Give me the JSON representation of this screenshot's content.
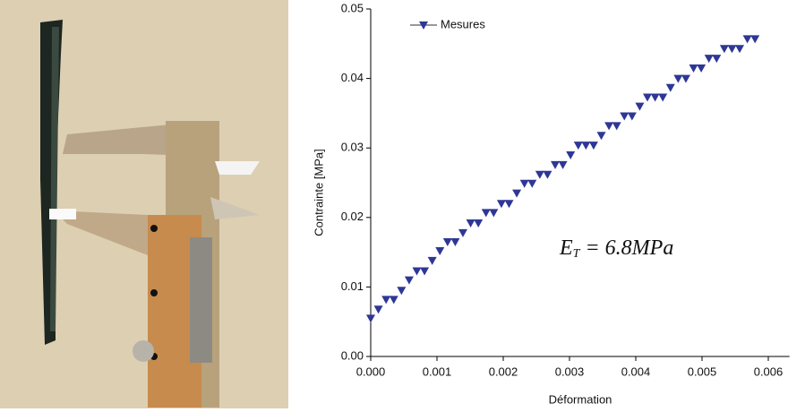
{
  "chart_data": {
    "type": "scatter",
    "xlabel": "Déformation",
    "ylabel": "Contrainte [MPa]",
    "annotation": {
      "symbol": "E",
      "subscript": "T",
      "equals": "= 6.8",
      "unit": "MPa"
    },
    "legend": "top-left",
    "xlim": [
      0,
      0.00632
    ],
    "ylim": [
      0,
      0.05
    ],
    "xticks": [
      {
        "value": 0,
        "label": "0.000"
      },
      {
        "value": 0.001,
        "label": "0.001"
      },
      {
        "value": 0.002,
        "label": "0.002"
      },
      {
        "value": 0.003,
        "label": "0.003"
      },
      {
        "value": 0.004,
        "label": "0.004"
      },
      {
        "value": 0.005,
        "label": "0.005"
      },
      {
        "value": 0.006,
        "label": "0.006"
      }
    ],
    "yticks": [
      {
        "value": 0,
        "label": "0.00"
      },
      {
        "value": 0.01,
        "label": "0.01"
      },
      {
        "value": 0.02,
        "label": "0.02"
      },
      {
        "value": 0.03,
        "label": "0.03"
      },
      {
        "value": 0.04,
        "label": "0.04"
      },
      {
        "value": 0.05,
        "label": "0.05"
      }
    ],
    "series": [
      {
        "name": "Mesures",
        "color": "#2e3796",
        "x": [
          0,
          0.000116,
          0.000232,
          0.000348,
          0.000464,
          0.00058,
          0.000696,
          0.000812,
          0.000928,
          0.001044,
          0.00116,
          0.001276,
          0.001392,
          0.001508,
          0.001624,
          0.00174,
          0.001856,
          0.001972,
          0.002088,
          0.002204,
          0.00232,
          0.002436,
          0.002552,
          0.002668,
          0.002784,
          0.0029,
          0.003016,
          0.003132,
          0.003248,
          0.003364,
          0.00348,
          0.003596,
          0.003712,
          0.003828,
          0.003944,
          0.00406,
          0.004176,
          0.004292,
          0.004408,
          0.004524,
          0.00464,
          0.004756,
          0.004872,
          0.004988,
          0.005104,
          0.00522,
          0.005336,
          0.005452,
          0.005568,
          0.005684,
          0.0058
        ],
        "values": [
          0.0055,
          0.0068,
          0.0082,
          0.0082,
          0.0095,
          0.011,
          0.0123,
          0.0123,
          0.0138,
          0.0152,
          0.0165,
          0.0165,
          0.0178,
          0.0192,
          0.0192,
          0.0207,
          0.0207,
          0.022,
          0.022,
          0.0235,
          0.0249,
          0.0249,
          0.0262,
          0.0262,
          0.0276,
          0.0276,
          0.029,
          0.0304,
          0.0304,
          0.0304,
          0.0318,
          0.0332,
          0.0332,
          0.0346,
          0.0346,
          0.036,
          0.0373,
          0.0373,
          0.0373,
          0.0387,
          0.04,
          0.04,
          0.0415,
          0.0415,
          0.0429,
          0.0429,
          0.0443,
          0.0443,
          0.0443,
          0.0457,
          0.0457
        ]
      }
    ]
  }
}
